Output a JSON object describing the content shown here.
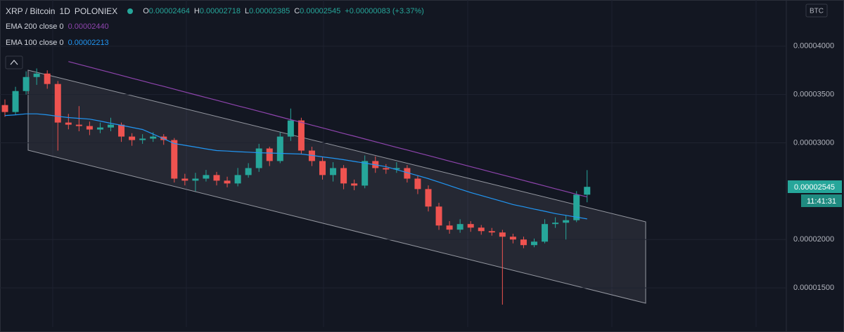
{
  "chart_data": {
    "type": "candlestick",
    "title": "XRP / Bitcoin",
    "interval": "1D",
    "exchange": "POLONIEX",
    "quote": "BTC",
    "legend": [
      {
        "label": "O",
        "value": "0.00002464"
      },
      {
        "label": "H",
        "value": "0.00002718"
      },
      {
        "label": "L",
        "value": "0.00002385"
      },
      {
        "label": "C",
        "value": "0.00002545"
      }
    ],
    "change": "+0.00000083 (+3.37%)",
    "price_tag": "0.00002545",
    "countdown": "11:41:31",
    "up_color": "#26a69a",
    "down_color": "#ef5350",
    "open": [
      3.391e-05,
      3.319e-05,
      3.536e-05,
      3.681e-05,
      3.717e-05,
      3.609e-05,
      3.21e-05,
      3.188e-05,
      3.174e-05,
      3.138e-05,
      3.159e-05,
      3.188e-05,
      3.065e-05,
      3.029e-05,
      3.044e-05,
      3.065e-05,
      3.029e-05,
      2.63e-05,
      2.609e-05,
      2.63e-05,
      2.667e-05,
      2.609e-05,
      2.58e-05,
      2.667e-05,
      2.739e-05,
      2.942e-05,
      2.812e-05,
      3.065e-05,
      3.232e-05,
      2.92e-05,
      2.812e-05,
      2.667e-05,
      2.739e-05,
      2.58e-05,
      2.558e-05,
      2.812e-05,
      2.739e-05,
      2.725e-05,
      2.739e-05,
      2.63e-05,
      2.522e-05,
      2.341e-05,
      2.145e-05,
      2.102e-05,
      2.16e-05,
      2.123e-05,
      2.087e-05,
      2.073e-05,
      2.029e-05,
      2e-05,
      1.942e-05,
      1.978e-05,
      2.16e-05,
      2.174e-05,
      2.2e-05,
      2.464e-05
    ],
    "high": [
      3.45e-05,
      3.58e-05,
      3.74e-05,
      3.77e-05,
      3.75e-05,
      3.64e-05,
      3.3e-05,
      3.38e-05,
      3.22e-05,
      3.21e-05,
      3.26e-05,
      3.21e-05,
      3.1e-05,
      3.09e-05,
      3.11e-05,
      3.09e-05,
      3.05e-05,
      2.68e-05,
      2.69e-05,
      2.72e-05,
      2.7e-05,
      2.65e-05,
      2.74e-05,
      2.79e-05,
      2.99e-05,
      2.96e-05,
      3.11e-05,
      3.355e-05,
      3.26e-05,
      2.96e-05,
      2.85e-05,
      2.8e-05,
      2.77e-05,
      2.62e-05,
      2.87e-05,
      2.86e-05,
      2.78e-05,
      2.8e-05,
      2.77e-05,
      2.66e-05,
      2.56e-05,
      2.38e-05,
      2.19e-05,
      2.21e-05,
      2.19e-05,
      2.15e-05,
      2.12e-05,
      2.1e-05,
      2.06e-05,
      2.03e-05,
      2.01e-05,
      2.21e-05,
      2.23e-05,
      2.25e-05,
      2.5e-05,
      2.718e-05
    ],
    "low": [
      3.27e-05,
      3.29e-05,
      3.5e-05,
      3.6e-05,
      3.56e-05,
      2.92e-05,
      3.14e-05,
      3.12e-05,
      3.08e-05,
      3.1e-05,
      3.12e-05,
      3.01e-05,
      2.97e-05,
      2.99e-05,
      3.01e-05,
      2.98e-05,
      2.59e-05,
      2.56e-05,
      2.5e-05,
      2.6e-05,
      2.56e-05,
      2.54e-05,
      2.55e-05,
      2.64e-05,
      2.7e-05,
      2.76e-05,
      2.79e-05,
      3.02e-05,
      2.88e-05,
      2.76e-05,
      2.62e-05,
      2.6e-05,
      2.52e-05,
      2.51e-05,
      2.53e-05,
      2.69e-05,
      2.68e-05,
      2.69e-05,
      2.59e-05,
      2.47e-05,
      2.29e-05,
      2.1e-05,
      2.06e-05,
      2.07e-05,
      2.08e-05,
      2.05e-05,
      2.04e-05,
      1.326e-05,
      1.96e-05,
      1.91e-05,
      1.92e-05,
      1.96e-05,
      2.12e-05,
      2e-05,
      2.18e-05,
      2.385e-05
    ],
    "close": [
      3.319e-05,
      3.536e-05,
      3.681e-05,
      3.717e-05,
      3.609e-05,
      3.21e-05,
      3.188e-05,
      3.174e-05,
      3.138e-05,
      3.159e-05,
      3.188e-05,
      3.065e-05,
      3.029e-05,
      3.044e-05,
      3.065e-05,
      3.029e-05,
      2.63e-05,
      2.609e-05,
      2.63e-05,
      2.667e-05,
      2.609e-05,
      2.58e-05,
      2.667e-05,
      2.739e-05,
      2.942e-05,
      2.812e-05,
      3.065e-05,
      3.232e-05,
      2.92e-05,
      2.812e-05,
      2.667e-05,
      2.739e-05,
      2.58e-05,
      2.558e-05,
      2.812e-05,
      2.739e-05,
      2.725e-05,
      2.739e-05,
      2.63e-05,
      2.522e-05,
      2.341e-05,
      2.145e-05,
      2.102e-05,
      2.16e-05,
      2.123e-05,
      2.087e-05,
      2.073e-05,
      2.029e-05,
      2e-05,
      1.942e-05,
      1.978e-05,
      2.16e-05,
      2.174e-05,
      2.2e-05,
      2.464e-05,
      2.545e-05
    ],
    "series": [
      {
        "name": "EMA 200 close 0",
        "color": "#8e44ad",
        "legend_value": "0.00002440",
        "values": [
          null,
          null,
          null,
          null,
          null,
          null,
          3.841e-05,
          3.812e-05,
          3.784e-05,
          3.755e-05,
          3.727e-05,
          3.698e-05,
          3.669e-05,
          3.641e-05,
          3.612e-05,
          3.584e-05,
          3.555e-05,
          3.526e-05,
          3.498e-05,
          3.469e-05,
          3.441e-05,
          3.412e-05,
          3.383e-05,
          3.355e-05,
          3.326e-05,
          3.298e-05,
          3.269e-05,
          3.24e-05,
          3.212e-05,
          3.183e-05,
          3.155e-05,
          3.126e-05,
          3.097e-05,
          3.069e-05,
          3.04e-05,
          3.012e-05,
          2.983e-05,
          2.954e-05,
          2.926e-05,
          2.897e-05,
          2.869e-05,
          2.84e-05,
          2.811e-05,
          2.783e-05,
          2.754e-05,
          2.726e-05,
          2.697e-05,
          2.668e-05,
          2.64e-05,
          2.611e-05,
          2.583e-05,
          2.554e-05,
          2.525e-05,
          2.497e-05,
          2.468e-05,
          2.44e-05
        ]
      },
      {
        "name": "EMA 100 close 0",
        "color": "#2196f3",
        "legend_value": "0.00002213",
        "values": [
          3.283e-05,
          3.29e-05,
          3.3e-05,
          3.3e-05,
          3.29e-05,
          3.275e-05,
          3.262e-05,
          3.254e-05,
          3.246e-05,
          3.225e-05,
          3.203e-05,
          3.182e-05,
          3.16e-05,
          3.138e-05,
          3.09e-05,
          3.042e-05,
          2.993e-05,
          2.975e-05,
          2.957e-05,
          2.938e-05,
          2.92e-05,
          2.915e-05,
          2.909e-05,
          2.904e-05,
          2.898e-05,
          2.895e-05,
          2.891e-05,
          2.888e-05,
          2.884e-05,
          2.87e-05,
          2.855e-05,
          2.841e-05,
          2.826e-05,
          2.808e-05,
          2.79e-05,
          2.772e-05,
          2.754e-05,
          2.723e-05,
          2.692e-05,
          2.661e-05,
          2.63e-05,
          2.594e-05,
          2.558e-05,
          2.522e-05,
          2.486e-05,
          2.455e-05,
          2.424e-05,
          2.393e-05,
          2.362e-05,
          2.339e-05,
          2.315e-05,
          2.292e-05,
          2.268e-05,
          2.25e-05,
          2.232e-05,
          2.213e-05
        ]
      }
    ],
    "ylim": [
      1.094e-05,
      4.478e-05
    ],
    "yticks": [
      {
        "value": 4e-05,
        "label": "0.00004000"
      },
      {
        "value": 3.5e-05,
        "label": "0.00003500"
      },
      {
        "value": 3e-05,
        "label": "0.00003000"
      },
      {
        "value": 2e-05,
        "label": "0.00002000"
      },
      {
        "value": 1.5e-05,
        "label": "0.00001500"
      }
    ],
    "grid": true
  }
}
